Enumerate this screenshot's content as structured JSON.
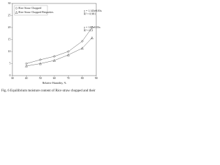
{
  "chart_data": {
    "type": "scatter",
    "caption": "Fig. 6 Equilibrium moisture content of Rice straw chopped and their",
    "x_label": "Relative Humidity, %",
    "x": [
      40,
      50,
      60,
      70,
      80,
      87
    ],
    "series": [
      {
        "name": "Rice Straw Chopped",
        "color": "#333333",
        "marker": "diamond",
        "values": [
          5.0,
          6.6,
          8.0,
          10.0,
          14.3,
          20.0
        ]
      },
      {
        "name": "Rice Straw Chopped Briquettes",
        "color": "#333333",
        "marker": "triangle",
        "values": [
          4.0,
          5.0,
          6.3,
          8.6,
          11.4,
          15.7
        ]
      }
    ],
    "equations": [
      [
        "y = 1.143e0.03x",
        "R² = 0.981"
      ],
      [
        "y = 1.07e0.03x",
        "R² = 0.9"
      ]
    ],
    "xlim": [
      30,
      90
    ],
    "xticks": [
      30,
      40,
      50,
      60,
      70,
      80,
      90
    ],
    "ylim": [
      0,
      30
    ],
    "yticks": [
      0,
      5,
      10,
      15,
      20,
      25,
      30
    ],
    "legend": "top-left"
  }
}
